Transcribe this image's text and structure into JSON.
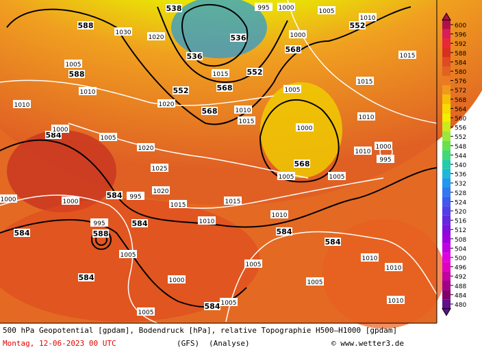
{
  "legend": {
    "values": [
      600,
      596,
      592,
      588,
      584,
      580,
      576,
      572,
      568,
      564,
      560,
      556,
      552,
      548,
      544,
      540,
      536,
      532,
      528,
      524,
      520,
      516,
      512,
      508,
      504,
      500,
      496,
      492,
      488,
      484,
      480
    ],
    "colors": [
      "#b0104a",
      "#d81e5a",
      "#e82838",
      "#d83020",
      "#e04a22",
      "#e26024",
      "#ec7a22",
      "#f09a1c",
      "#f6c00a",
      "#f8dc00",
      "#f0f000",
      "#c8ec20",
      "#98e840",
      "#68e050",
      "#40d878",
      "#22cca8",
      "#20b8d8",
      "#2098f0",
      "#3078f0",
      "#4058f0",
      "#5040e8",
      "#6428e0",
      "#8010e0",
      "#a000e0",
      "#c000e0",
      "#e000e0",
      "#e000c0",
      "#c000a0",
      "#a00088",
      "#80006c",
      "#60108a"
    ]
  },
  "map": {
    "labels": [
      588,
      588,
      538,
      552,
      536,
      536,
      552,
      552,
      568,
      568,
      568,
      568,
      584,
      584,
      584,
      584,
      588,
      584,
      584,
      584,
      584,
      1030,
      1020,
      1005,
      1010,
      1010,
      1000,
      1005,
      1000,
      995,
      995,
      1005,
      1000,
      1005,
      1005,
      1005,
      1010,
      1010,
      1005,
      1005,
      1005,
      1010,
      1015,
      1015,
      1010,
      1005,
      1000,
      995,
      1000,
      1005,
      1010,
      1015,
      1015,
      1010,
      1000,
      1015,
      1015,
      1010,
      1020,
      1020,
      1025,
      1020,
      1000,
      995,
      1010,
      1010,
      1000
    ]
  },
  "footer": {
    "line1": "500 hPa Geopotential [gpdam], Bodendruck [hPa], relative Topographie H500—H1000 [gpdam]",
    "date": "Montag, 12-06-2023  00 UTC",
    "model": "(GFS)",
    "run": "(Analyse)",
    "credit": "© www.wetter3.de"
  }
}
